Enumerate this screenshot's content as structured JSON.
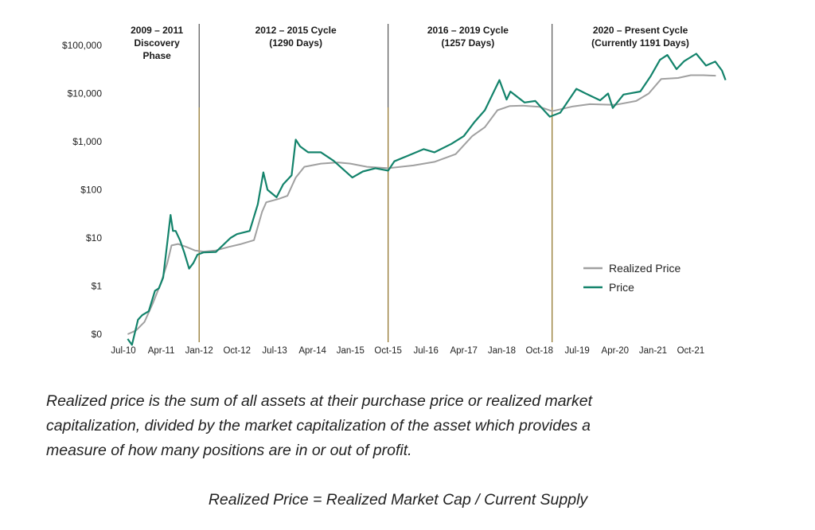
{
  "chart_data": {
    "type": "line",
    "title": "",
    "xlabel": "",
    "ylabel": "",
    "y_scale": "log",
    "ylim": [
      0.1,
      100000
    ],
    "xlim": [
      "2010-07-01",
      "2022-06-01"
    ],
    "y_ticks": [
      {
        "value": 100000,
        "label": "$100,000"
      },
      {
        "value": 10000,
        "label": "$10,000"
      },
      {
        "value": 1000,
        "label": "$1,000"
      },
      {
        "value": 100,
        "label": "$100"
      },
      {
        "value": 10,
        "label": "$10"
      },
      {
        "value": 1,
        "label": "$1"
      },
      {
        "value": 0.1,
        "label": "$0"
      }
    ],
    "x_ticks": [
      {
        "date": "2010-07-01",
        "label": "Jul-10"
      },
      {
        "date": "2011-04-01",
        "label": "Apr-11"
      },
      {
        "date": "2012-01-01",
        "label": "Jan-12"
      },
      {
        "date": "2012-10-01",
        "label": "Oct-12"
      },
      {
        "date": "2013-07-01",
        "label": "Jul-13"
      },
      {
        "date": "2014-04-01",
        "label": "Apr-14"
      },
      {
        "date": "2015-01-01",
        "label": "Jan-15"
      },
      {
        "date": "2015-10-01",
        "label": "Oct-15"
      },
      {
        "date": "2016-07-01",
        "label": "Jul-16"
      },
      {
        "date": "2017-04-01",
        "label": "Apr-17"
      },
      {
        "date": "2018-01-01",
        "label": "Jan-18"
      },
      {
        "date": "2018-10-01",
        "label": "Oct-18"
      },
      {
        "date": "2019-07-01",
        "label": "Jul-19"
      },
      {
        "date": "2020-04-01",
        "label": "Apr-20"
      },
      {
        "date": "2021-01-01",
        "label": "Jan-21"
      },
      {
        "date": "2021-10-01",
        "label": "Oct-21"
      }
    ],
    "grid": false,
    "legend_position": "right",
    "cycle_dividers": [
      "2012-01-01",
      "2015-10-01",
      "2019-01-01"
    ],
    "phases": [
      {
        "lines": [
          "2009 – 2011",
          "Discovery",
          "Phase"
        ],
        "center_date": "2011-03-01"
      },
      {
        "lines": [
          "2012 – 2015 Cycle",
          "(1290 Days)"
        ],
        "center_date": "2013-12-01"
      },
      {
        "lines": [
          "2016 – 2019 Cycle",
          "(1257 Days)"
        ],
        "center_date": "2017-05-01"
      },
      {
        "lines": [
          "2020 – Present Cycle",
          "(Currently 1191 Days)"
        ],
        "center_date": "2020-10-01"
      }
    ],
    "series": [
      {
        "name": "Realized Price",
        "color": "#a0a0a0",
        "points": [
          [
            "2010-08-01",
            0.1
          ],
          [
            "2010-10-01",
            0.12
          ],
          [
            "2010-12-01",
            0.18
          ],
          [
            "2011-02-01",
            0.45
          ],
          [
            "2011-04-01",
            1.2
          ],
          [
            "2011-05-15",
            3
          ],
          [
            "2011-06-15",
            7
          ],
          [
            "2011-08-01",
            7.5
          ],
          [
            "2011-10-01",
            6.5
          ],
          [
            "2011-12-01",
            5.5
          ],
          [
            "2012-02-01",
            5.2
          ],
          [
            "2012-05-01",
            5.5
          ],
          [
            "2012-08-01",
            6.5
          ],
          [
            "2012-11-01",
            7.5
          ],
          [
            "2013-02-01",
            9
          ],
          [
            "2013-04-01",
            35
          ],
          [
            "2013-05-01",
            55
          ],
          [
            "2013-08-01",
            65
          ],
          [
            "2013-10-01",
            75
          ],
          [
            "2013-12-01",
            180
          ],
          [
            "2014-02-01",
            300
          ],
          [
            "2014-06-01",
            350
          ],
          [
            "2014-10-01",
            370
          ],
          [
            "2015-01-01",
            350
          ],
          [
            "2015-05-01",
            300
          ],
          [
            "2015-10-01",
            280
          ],
          [
            "2016-04-01",
            320
          ],
          [
            "2016-09-01",
            380
          ],
          [
            "2017-02-01",
            550
          ],
          [
            "2017-06-01",
            1300
          ],
          [
            "2017-09-01",
            2000
          ],
          [
            "2017-12-01",
            4500
          ],
          [
            "2018-03-01",
            5500
          ],
          [
            "2018-06-01",
            5600
          ],
          [
            "2018-10-01",
            5300
          ],
          [
            "2019-01-01",
            4300
          ],
          [
            "2019-06-01",
            5400
          ],
          [
            "2019-10-01",
            6000
          ],
          [
            "2020-04-01",
            5800
          ],
          [
            "2020-09-01",
            7000
          ],
          [
            "2020-12-01",
            10000
          ],
          [
            "2021-03-01",
            20000
          ],
          [
            "2021-07-01",
            21000
          ],
          [
            "2021-10-01",
            24000
          ],
          [
            "2022-01-01",
            24000
          ],
          [
            "2022-04-01",
            23500
          ]
        ]
      },
      {
        "name": "Price",
        "color": "#13836b",
        "points": [
          [
            "2010-08-01",
            0.08
          ],
          [
            "2010-09-01",
            0.06
          ],
          [
            "2010-10-15",
            0.2
          ],
          [
            "2010-11-15",
            0.25
          ],
          [
            "2011-01-01",
            0.3
          ],
          [
            "2011-02-15",
            0.8
          ],
          [
            "2011-03-15",
            0.9
          ],
          [
            "2011-04-15",
            1.5
          ],
          [
            "2011-05-15",
            8
          ],
          [
            "2011-06-08",
            30
          ],
          [
            "2011-06-25",
            14
          ],
          [
            "2011-07-15",
            14
          ],
          [
            "2011-08-15",
            9
          ],
          [
            "2011-09-15",
            5
          ],
          [
            "2011-10-20",
            2.3
          ],
          [
            "2011-11-20",
            3
          ],
          [
            "2011-12-20",
            4.5
          ],
          [
            "2012-02-01",
            5
          ],
          [
            "2012-05-01",
            5.1
          ],
          [
            "2012-08-15",
            10
          ],
          [
            "2012-10-01",
            12
          ],
          [
            "2013-01-01",
            14
          ],
          [
            "2013-03-01",
            50
          ],
          [
            "2013-04-10",
            230
          ],
          [
            "2013-05-10",
            100
          ],
          [
            "2013-07-15",
            70
          ],
          [
            "2013-09-01",
            130
          ],
          [
            "2013-11-01",
            200
          ],
          [
            "2013-12-01",
            1100
          ],
          [
            "2014-01-01",
            800
          ],
          [
            "2014-03-01",
            600
          ],
          [
            "2014-06-01",
            600
          ],
          [
            "2014-09-01",
            400
          ],
          [
            "2015-01-15",
            180
          ],
          [
            "2015-04-01",
            240
          ],
          [
            "2015-07-01",
            280
          ],
          [
            "2015-10-01",
            250
          ],
          [
            "2015-11-15",
            390
          ],
          [
            "2016-06-15",
            700
          ],
          [
            "2016-09-01",
            600
          ],
          [
            "2017-01-01",
            900
          ],
          [
            "2017-04-01",
            1300
          ],
          [
            "2017-06-15",
            2500
          ],
          [
            "2017-09-01",
            4500
          ],
          [
            "2017-12-15",
            19000
          ],
          [
            "2018-02-05",
            7500
          ],
          [
            "2018-03-05",
            11000
          ],
          [
            "2018-06-15",
            6500
          ],
          [
            "2018-09-01",
            7000
          ],
          [
            "2018-12-15",
            3300
          ],
          [
            "2019-03-01",
            4000
          ],
          [
            "2019-06-26",
            12500
          ],
          [
            "2019-09-01",
            10000
          ],
          [
            "2019-12-15",
            7200
          ],
          [
            "2020-02-10",
            10000
          ],
          [
            "2020-03-15",
            5000
          ],
          [
            "2020-06-01",
            9500
          ],
          [
            "2020-10-01",
            11000
          ],
          [
            "2020-12-15",
            23000
          ],
          [
            "2021-02-20",
            50000
          ],
          [
            "2021-04-15",
            63000
          ],
          [
            "2021-06-20",
            32000
          ],
          [
            "2021-08-15",
            47000
          ],
          [
            "2021-11-10",
            67000
          ],
          [
            "2022-01-20",
            38000
          ],
          [
            "2022-03-28",
            46000
          ],
          [
            "2022-05-15",
            30000
          ],
          [
            "2022-06-10",
            19000
          ]
        ]
      }
    ]
  },
  "caption": {
    "lines": [
      "Realized price is the sum of all assets at their purchase price or realized market",
      "capitalization, divided by the market capitalization of the asset which provides a",
      "measure of how many positions are in or out of profit."
    ]
  },
  "formula": "Realized Price = Realized Market Cap / Current Supply"
}
